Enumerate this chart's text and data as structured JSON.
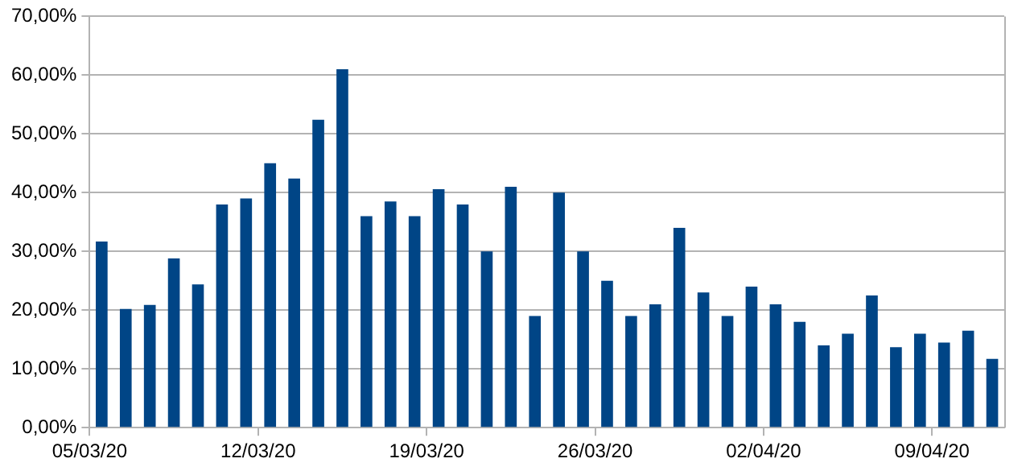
{
  "chart_data": {
    "type": "bar",
    "categories": [
      "05/03/20",
      null,
      null,
      null,
      null,
      null,
      null,
      "12/03/20",
      null,
      null,
      null,
      null,
      null,
      null,
      "19/03/20",
      null,
      null,
      null,
      null,
      null,
      null,
      "26/03/20",
      null,
      null,
      null,
      null,
      null,
      null,
      "02/04/20",
      null,
      null,
      null,
      null,
      null,
      null,
      "09/04/20",
      null,
      null
    ],
    "values": [
      31.7,
      20.2,
      20.9,
      28.8,
      24.4,
      38,
      39,
      45,
      42.4,
      52.4,
      61,
      36,
      38.5,
      36,
      40.6,
      38,
      30,
      41,
      19,
      40,
      30,
      25,
      19,
      21,
      34,
      23,
      19,
      24,
      21,
      18,
      14,
      16,
      22.5,
      13.7,
      16,
      14.5,
      16.5,
      11.7
    ],
    "color": "#004586",
    "ylim": [
      0,
      70
    ],
    "yticks": [
      {
        "value": 0,
        "label": "0,00%"
      },
      {
        "value": 10,
        "label": "10,00%"
      },
      {
        "value": 20,
        "label": "20,00%"
      },
      {
        "value": 30,
        "label": "30,00%"
      },
      {
        "value": 40,
        "label": "40,00%"
      },
      {
        "value": 50,
        "label": "50,00%"
      },
      {
        "value": 60,
        "label": "60,00%"
      },
      {
        "value": 70,
        "label": "70,00%"
      }
    ],
    "grid": "y",
    "legend": false
  }
}
